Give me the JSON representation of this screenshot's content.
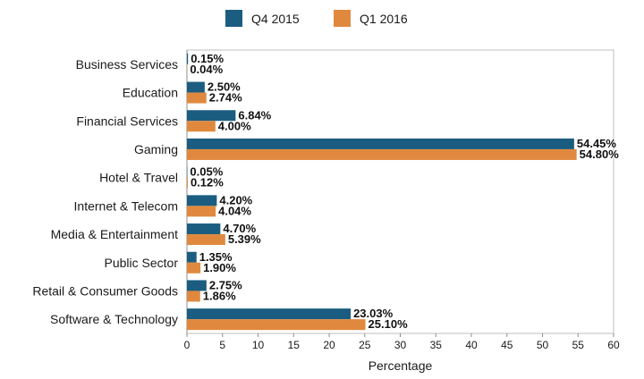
{
  "chart_data": {
    "type": "bar",
    "orientation": "horizontal",
    "categories": [
      "Business Services",
      "Education",
      "Financial Services",
      "Gaming",
      "Hotel & Travel",
      "Internet & Telecom",
      "Media & Entertainment",
      "Public Sector",
      "Retail & Consumer Goods",
      "Software & Technology"
    ],
    "series": [
      {
        "name": "Q4 2015",
        "color": "#1b5d80",
        "values": [
          0.15,
          2.5,
          6.84,
          54.45,
          0.05,
          4.2,
          4.7,
          1.35,
          2.75,
          23.03
        ],
        "labels": [
          "0.15%",
          "2.50%",
          "6.84%",
          "54.45%",
          "0.05%",
          "4.20%",
          "4.70%",
          "1.35%",
          "2.75%",
          "23.03%"
        ]
      },
      {
        "name": "Q1 2016",
        "color": "#e0893e",
        "values": [
          0.04,
          2.74,
          4.0,
          54.8,
          0.12,
          4.04,
          5.39,
          1.9,
          1.86,
          25.1
        ],
        "labels": [
          "0.04%",
          "2.74%",
          "4.00%",
          "54.80%",
          "0.12%",
          "4.04%",
          "5.39%",
          "1.90%",
          "1.86%",
          "25.10%"
        ]
      }
    ],
    "xlabel": "Percentage",
    "ylabel": "",
    "xlim": [
      0,
      60
    ],
    "xticks": [
      0,
      5,
      10,
      15,
      20,
      25,
      30,
      35,
      40,
      45,
      50,
      55,
      60
    ],
    "grid": false,
    "legend_position": "top-center"
  }
}
